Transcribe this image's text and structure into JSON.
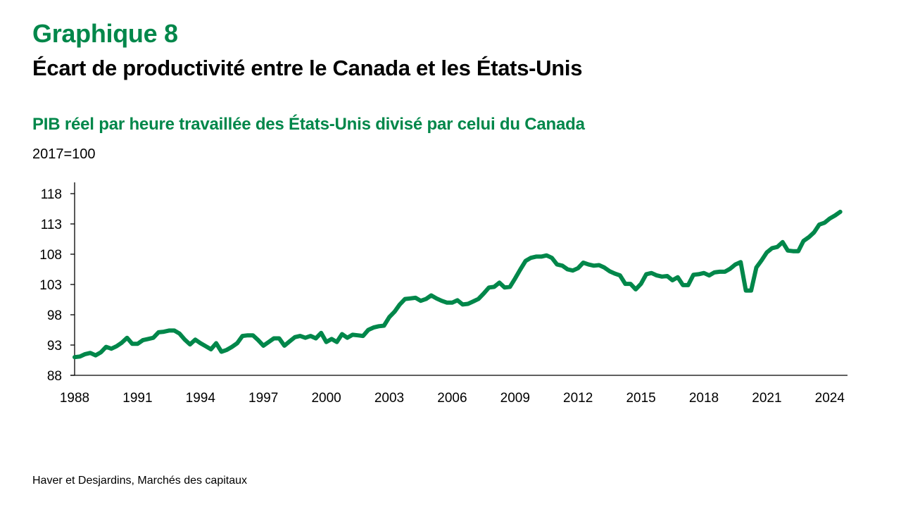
{
  "header": {
    "chart_number": "Graphique 8",
    "title": "Écart de productivité entre le Canada et les États-Unis",
    "subtitle": "PIB réel par heure travaillée des États-Unis divisé par celui du Canada",
    "unit": "2017=100"
  },
  "footer": {
    "source": "Haver et Desjardins, Marchés des capitaux"
  },
  "colors": {
    "series": "#00874a",
    "title_accent": "#00874a",
    "axis": "#000000"
  },
  "chart_data": {
    "type": "line",
    "title": "PIB réel par heure travaillée des États-Unis divisé par celui du Canada",
    "xlabel": "",
    "ylabel": "2017=100",
    "frequency": "quarterly",
    "x_start": 1988.0,
    "x_step": 0.25,
    "xlim": [
      1988,
      2024.5
    ],
    "ylim": [
      88,
      118
    ],
    "yticks": [
      88,
      93,
      98,
      103,
      108,
      113,
      118
    ],
    "ytick_labels": [
      "88",
      "93",
      "98",
      "103",
      "108",
      "113",
      "118"
    ],
    "xticks": [
      1988,
      1991,
      1994,
      1997,
      2000,
      2003,
      2006,
      2009,
      2012,
      2015,
      2018,
      2021,
      2024
    ],
    "xtick_labels": [
      "1988",
      "1991",
      "1994",
      "1997",
      "2000",
      "2003",
      "2006",
      "2009",
      "2012",
      "2015",
      "2018",
      "2021",
      "2024"
    ],
    "grid": false,
    "legend": "none",
    "series": [
      {
        "name": "PIB réel par heure travaillée É.-U. / Canada",
        "values": [
          91.0,
          91.1,
          91.5,
          91.7,
          91.3,
          91.8,
          92.7,
          92.4,
          92.8,
          93.4,
          94.2,
          93.2,
          93.2,
          93.8,
          94.0,
          94.2,
          95.1,
          95.2,
          95.4,
          95.4,
          94.9,
          93.9,
          93.1,
          93.9,
          93.3,
          92.8,
          92.3,
          93.3,
          91.9,
          92.2,
          92.7,
          93.3,
          94.5,
          94.6,
          94.6,
          93.8,
          92.9,
          93.5,
          94.1,
          94.1,
          92.9,
          93.6,
          94.3,
          94.5,
          94.2,
          94.5,
          94.1,
          95.0,
          93.5,
          94.0,
          93.5,
          94.8,
          94.2,
          94.7,
          94.6,
          94.5,
          95.5,
          95.9,
          96.1,
          96.2,
          97.6,
          98.5,
          99.7,
          100.6,
          100.7,
          100.8,
          100.3,
          100.6,
          101.2,
          100.7,
          100.3,
          100.0,
          100.0,
          100.4,
          99.7,
          99.8,
          100.2,
          100.6,
          101.5,
          102.5,
          102.6,
          103.3,
          102.5,
          102.6,
          104.0,
          105.5,
          106.9,
          107.4,
          107.6,
          107.6,
          107.8,
          107.4,
          106.3,
          106.1,
          105.5,
          105.3,
          105.7,
          106.6,
          106.3,
          106.1,
          106.2,
          105.8,
          105.2,
          104.8,
          104.5,
          103.1,
          103.1,
          102.2,
          103.1,
          104.7,
          104.9,
          104.5,
          104.3,
          104.4,
          103.7,
          104.2,
          102.9,
          102.9,
          104.6,
          104.7,
          104.9,
          104.5,
          105.0,
          105.1,
          105.1,
          105.6,
          106.3,
          106.7,
          102.0,
          102.0,
          105.8,
          107.0,
          108.3,
          109.0,
          109.2,
          110.0,
          108.6,
          108.5,
          108.5,
          110.2,
          110.8,
          111.6,
          112.9,
          113.2,
          113.9,
          114.4,
          115.0
        ]
      }
    ]
  }
}
